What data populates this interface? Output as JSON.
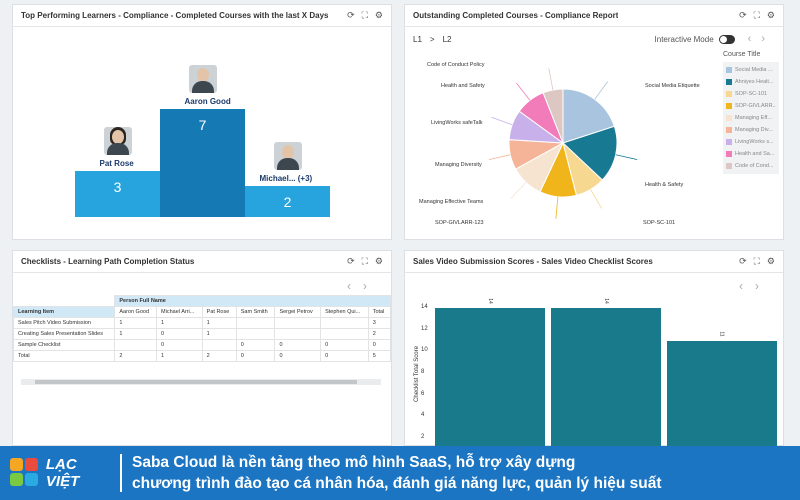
{
  "panel1": {
    "title": "Top Performing Learners - Compliance - Completed Courses with the last X Days",
    "bars": [
      {
        "name": "Pat Rose",
        "value": 3
      },
      {
        "name": "Aaron Good",
        "value": 7
      },
      {
        "name": "Michael... (+3)",
        "value": 2
      }
    ]
  },
  "panel2": {
    "title": "Outstanding Completed Courses - Compliance Report",
    "crumb1": "L1",
    "crumb_sep": ">",
    "crumb2": "L2",
    "interactive_label": "Interactive Mode",
    "legend_title": "Course Title",
    "legend": [
      {
        "label": "Social Media ...",
        "color": "#a9c4de"
      },
      {
        "label": "Ahniyes Healt...",
        "color": "#177a92"
      },
      {
        "label": "SOP-SC-101",
        "color": "#f6d891"
      },
      {
        "label": "SOP-GIVLARR...",
        "color": "#f0b51a"
      },
      {
        "label": "Managing Eff...",
        "color": "#f6e3d0"
      },
      {
        "label": "Managing Div...",
        "color": "#f5b497"
      },
      {
        "label": "LivingWorks s...",
        "color": "#c8b1ea"
      },
      {
        "label": "Health and Sa...",
        "color": "#f27bb9"
      },
      {
        "label": "Code of Cond...",
        "color": "#dcc7c2"
      }
    ],
    "pie_labels": {
      "code_conduct": "Code of Conduct Policy",
      "health_safety_l": "Health and Safety",
      "livingworks": "LivingWorks safeTalk",
      "managing_div": "Managing Diversity",
      "managing_eff": "Managing Effective Teams",
      "sop_givl": "SOP-GIVLARR-123",
      "sop_sc": "SOP-SC-101",
      "health_safety_r": "Health & Safety",
      "social": "Social Media Etiquette"
    }
  },
  "panel3": {
    "title": "Checklists - Learning Path Completion Status",
    "group_header": "Person Full Name",
    "columns": [
      "Learning Item",
      "Aaron Good",
      "Michael Arri...",
      "Pat Rose",
      "Sam Smith",
      "Sergei Petrov",
      "Stephen Qui...",
      "Total"
    ],
    "rows": [
      [
        "Sales Pitch Video Submission",
        "1",
        "1",
        "1",
        "",
        "",
        "",
        "3"
      ],
      [
        "Creating Sales Presentation Slides",
        "1",
        "0",
        "1",
        "",
        "",
        "",
        "2"
      ],
      [
        "Sample Checklist",
        "",
        "0",
        "",
        "0",
        "0",
        "0",
        "0"
      ],
      [
        "Total",
        "2",
        "1",
        "2",
        "0",
        "0",
        "0",
        "5"
      ]
    ]
  },
  "panel4": {
    "title": "Sales Video Submission Scores - Sales Video Checklist Scores",
    "ylabel": "Checklist Total Score",
    "yticks": [
      "14",
      "12",
      "10",
      "8",
      "6",
      "4",
      "2"
    ]
  },
  "chart_data": [
    {
      "type": "bar",
      "title": "Top Performing Learners - Compliance - Completed Courses with the last X Days",
      "categories": [
        "Pat Rose",
        "Aaron Good",
        "Michael... (+3)"
      ],
      "values": [
        3,
        7,
        2
      ]
    },
    {
      "type": "pie",
      "title": "Outstanding Completed Courses - Compliance Report",
      "categories": [
        "Social Media Etiquette",
        "Health & Safety",
        "SOP-SC-101",
        "SOP-GIVLARR-123",
        "Managing Effective Teams",
        "Managing Diversity",
        "LivingWorks safeTalk",
        "Health and Safety",
        "Code of Conduct Policy"
      ],
      "values": [
        20,
        17,
        9,
        11,
        10,
        9,
        9,
        9,
        6
      ]
    },
    {
      "type": "bar",
      "title": "Sales Video Submission Scores - Sales Video Checklist Scores",
      "ylabel": "Checklist Total Score",
      "ylim": [
        0,
        14
      ],
      "values": [
        14,
        14,
        11
      ],
      "data_labels": [
        "14",
        "14",
        "11"
      ]
    }
  ],
  "banner": {
    "logo_text": "LẠC VIỆT",
    "line1": "Saba Cloud là nền tảng theo mô hình SaaS, hỗ trợ xây dựng",
    "line2": "chương trình đào tạo cá nhân hóa, đánh giá năng lực, quản lý hiệu suất"
  }
}
